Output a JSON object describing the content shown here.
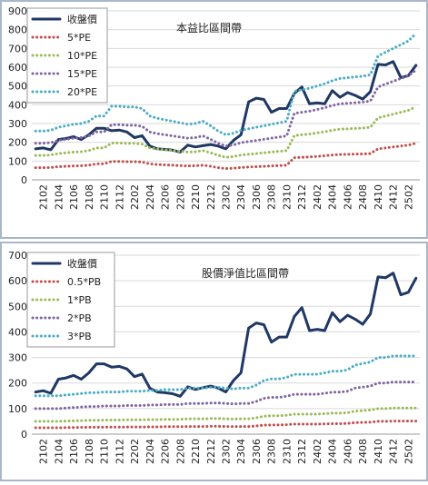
{
  "chart_data": [
    {
      "type": "line",
      "title": "本益比區間帶",
      "legend": "upper left",
      "grid": true,
      "categories": [
        null,
        "2102",
        null,
        "2104",
        null,
        "2106",
        null,
        "2108",
        null,
        "2110",
        null,
        "2112",
        null,
        "2202",
        null,
        "2204",
        null,
        "2206",
        null,
        "2208",
        null,
        "2210",
        null,
        "2212",
        null,
        "2302",
        null,
        "2304",
        null,
        "2306",
        null,
        "2308",
        null,
        "2310",
        null,
        "2312",
        null,
        "2402",
        null,
        "2404",
        null,
        "2406",
        null,
        "2408",
        null,
        "2410",
        null,
        "2412",
        null,
        "2502",
        null
      ],
      "ylim": [
        0,
        900
      ],
      "yticks": [
        0,
        100,
        200,
        300,
        400,
        500,
        600,
        700,
        800,
        900
      ],
      "series": [
        {
          "name": "收盤價",
          "color": "#1f3864",
          "values": [
            165,
            170,
            160,
            215,
            220,
            230,
            215,
            240,
            275,
            275,
            262,
            265,
            255,
            225,
            235,
            180,
            165,
            162,
            158,
            148,
            185,
            175,
            182,
            188,
            180,
            165,
            210,
            240,
            415,
            435,
            428,
            360,
            380,
            380,
            460,
            495,
            405,
            410,
            405,
            475,
            440,
            465,
            450,
            430,
            470,
            615,
            612,
            630,
            545,
            555,
            610
          ]
        },
        {
          "name": "5*PE",
          "color": "#c0504d",
          "values": [
            65,
            65,
            66,
            70,
            72,
            74,
            75,
            78,
            85,
            85,
            98,
            98,
            97,
            97,
            95,
            85,
            82,
            80,
            78,
            76,
            74,
            75,
            78,
            72,
            65,
            60,
            62,
            66,
            68,
            70,
            72,
            74,
            76,
            78,
            118,
            120,
            122,
            125,
            128,
            132,
            135,
            136,
            137,
            138,
            140,
            165,
            170,
            175,
            180,
            185,
            195
          ]
        },
        {
          "name": "10*PE",
          "color": "#9bbb59",
          "values": [
            130,
            130,
            132,
            140,
            144,
            148,
            150,
            156,
            170,
            170,
            196,
            196,
            194,
            194,
            190,
            170,
            164,
            160,
            156,
            152,
            148,
            150,
            156,
            144,
            130,
            120,
            124,
            132,
            136,
            140,
            144,
            148,
            152,
            156,
            236,
            240,
            244,
            250,
            256,
            264,
            270,
            272,
            274,
            276,
            280,
            330,
            340,
            350,
            360,
            370,
            390
          ]
        },
        {
          "name": "15*PE",
          "color": "#8064a2",
          "values": [
            195,
            195,
            198,
            210,
            216,
            222,
            225,
            234,
            255,
            255,
            294,
            294,
            291,
            291,
            285,
            255,
            246,
            240,
            234,
            228,
            222,
            225,
            234,
            216,
            195,
            180,
            186,
            198,
            204,
            210,
            216,
            222,
            228,
            234,
            354,
            360,
            366,
            375,
            384,
            396,
            405,
            408,
            411,
            414,
            420,
            495,
            510,
            525,
            540,
            555,
            585
          ]
        },
        {
          "name": "20*PE",
          "color": "#4bacc6",
          "values": [
            260,
            260,
            264,
            280,
            288,
            296,
            300,
            312,
            340,
            340,
            392,
            392,
            388,
            388,
            380,
            340,
            328,
            320,
            312,
            304,
            296,
            300,
            312,
            288,
            260,
            240,
            248,
            264,
            272,
            280,
            288,
            296,
            304,
            312,
            472,
            480,
            488,
            500,
            512,
            528,
            540,
            544,
            548,
            552,
            560,
            660,
            680,
            700,
            720,
            740,
            780
          ]
        }
      ]
    },
    {
      "type": "line",
      "title": "股價淨值比區間帶",
      "legend": "upper left",
      "grid": true,
      "categories": [
        null,
        "2102",
        null,
        "2104",
        null,
        "2106",
        null,
        "2108",
        null,
        "2110",
        null,
        "2112",
        null,
        "2202",
        null,
        "2204",
        null,
        "2206",
        null,
        "2208",
        null,
        "2210",
        null,
        "2212",
        null,
        "2302",
        null,
        "2304",
        null,
        "2306",
        null,
        "2308",
        null,
        "2310",
        null,
        "2312",
        null,
        "2402",
        null,
        "2404",
        null,
        "2406",
        null,
        "2408",
        null,
        "2410",
        null,
        "2412",
        null,
        "2502",
        null
      ],
      "ylim": [
        0,
        700
      ],
      "yticks": [
        0,
        100,
        200,
        300,
        400,
        500,
        600,
        700
      ],
      "series": [
        {
          "name": "收盤價",
          "color": "#1f3864",
          "values": [
            165,
            170,
            160,
            215,
            220,
            230,
            215,
            240,
            275,
            275,
            262,
            265,
            255,
            225,
            235,
            180,
            165,
            162,
            158,
            148,
            185,
            175,
            182,
            188,
            180,
            165,
            210,
            240,
            415,
            435,
            428,
            360,
            380,
            380,
            460,
            495,
            405,
            410,
            405,
            475,
            440,
            465,
            450,
            430,
            470,
            615,
            612,
            630,
            545,
            555,
            610
          ]
        },
        {
          "name": "0.5*PB",
          "color": "#c0504d",
          "values": [
            25,
            25,
            25,
            25,
            25.5,
            26,
            26.5,
            27,
            27,
            27.5,
            27.5,
            27.5,
            28,
            28,
            28,
            28.5,
            28.5,
            29,
            29,
            29,
            30,
            30,
            30,
            30.5,
            30.5,
            30,
            29.5,
            30,
            30,
            32,
            35,
            36,
            36,
            37,
            39,
            39,
            39,
            39,
            40,
            41,
            41,
            42,
            45,
            46,
            47,
            50,
            50,
            51,
            51,
            51,
            51
          ]
        },
        {
          "name": "1*PB",
          "color": "#9bbb59",
          "values": [
            50,
            50,
            50,
            50,
            51,
            52,
            53,
            54,
            54,
            55,
            55,
            55,
            56,
            56,
            56,
            57,
            57,
            58,
            58,
            58,
            60,
            60,
            60,
            61,
            61,
            60,
            59,
            60,
            60,
            64,
            70,
            72,
            72,
            74,
            78,
            78,
            78,
            78,
            80,
            82,
            82,
            84,
            90,
            92,
            94,
            100,
            100,
            102,
            102,
            102,
            102
          ]
        },
        {
          "name": "2*PB",
          "color": "#8064a2",
          "values": [
            100,
            100,
            100,
            100,
            102,
            104,
            106,
            108,
            108,
            110,
            110,
            110,
            112,
            112,
            112,
            114,
            114,
            116,
            116,
            116,
            120,
            120,
            120,
            122,
            122,
            120,
            118,
            120,
            120,
            128,
            140,
            144,
            144,
            148,
            156,
            156,
            156,
            156,
            160,
            164,
            164,
            168,
            180,
            184,
            188,
            200,
            200,
            204,
            204,
            204,
            204
          ]
        },
        {
          "name": "3*PB",
          "color": "#4bacc6",
          "values": [
            150,
            150,
            150,
            150,
            153,
            156,
            159,
            162,
            162,
            165,
            165,
            165,
            168,
            168,
            168,
            171,
            171,
            174,
            174,
            174,
            180,
            180,
            180,
            183,
            183,
            180,
            177,
            180,
            180,
            192,
            210,
            216,
            216,
            222,
            234,
            234,
            234,
            234,
            240,
            246,
            246,
            252,
            270,
            276,
            282,
            300,
            300,
            306,
            306,
            306,
            306
          ]
        }
      ]
    }
  ]
}
